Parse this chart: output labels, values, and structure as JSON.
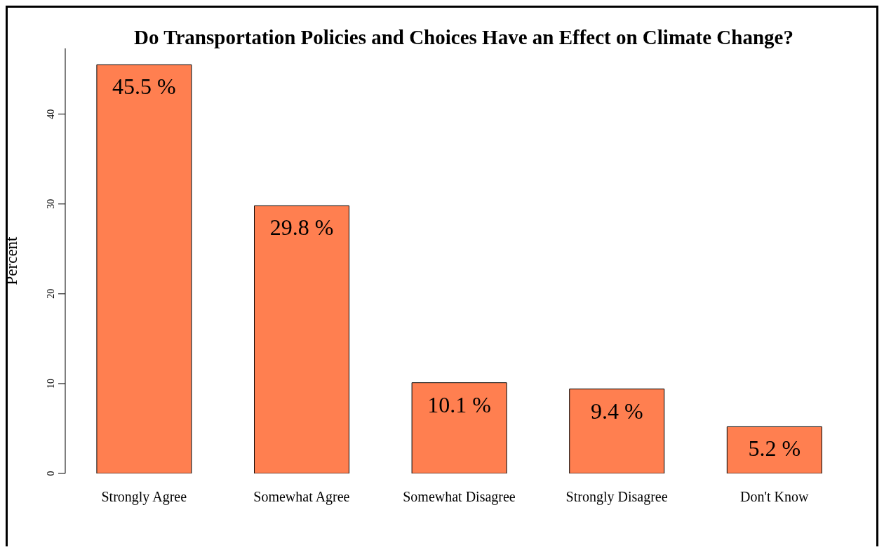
{
  "chart_data": {
    "type": "bar",
    "title": "Do Transportation Policies and Choices Have an Effect on Climate Change?",
    "ylabel": "Percent",
    "categories": [
      "Strongly Agree",
      "Somewhat Agree",
      "Somewhat Disagree",
      "Strongly Disagree",
      "Don't Know"
    ],
    "values": [
      45.5,
      29.8,
      10.1,
      9.4,
      5.2
    ],
    "value_labels": [
      "45.5 %",
      "29.8 %",
      "10.1 %",
      "9.4 %",
      "5.2 %"
    ],
    "color": "#ff7f50",
    "ylim": [
      0,
      47.32
    ],
    "yticks": [
      0,
      10,
      20,
      30,
      40
    ],
    "grid": false,
    "legend": false
  }
}
